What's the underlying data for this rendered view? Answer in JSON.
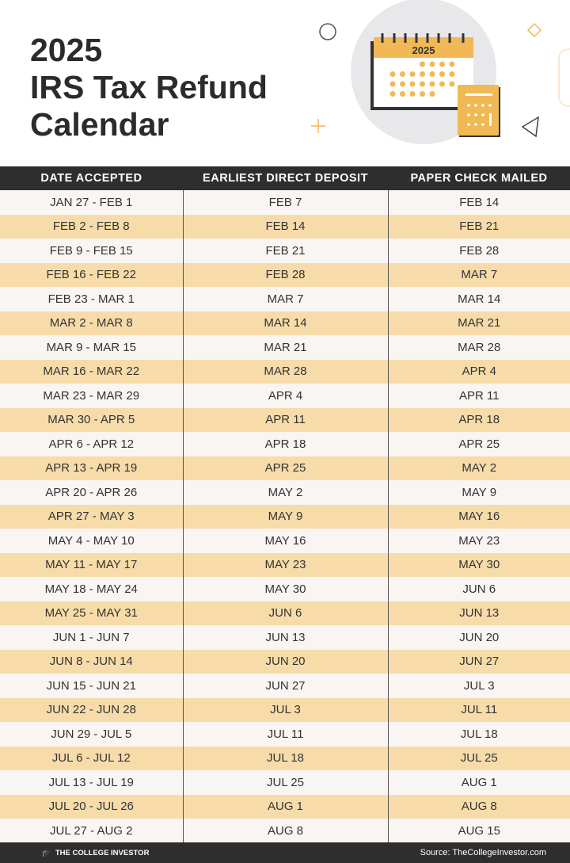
{
  "title": "2025\nIRS Tax Refund\nCalendar",
  "illustration": {
    "calendar_year": "2025",
    "accent": "#f0b955"
  },
  "table": {
    "headers": [
      "DATE ACCEPTED",
      "EARLIEST DIRECT DEPOSIT",
      "PAPER CHECK MAILED"
    ],
    "rows": [
      [
        "JAN 27 - FEB 1",
        "FEB 7",
        "FEB 14"
      ],
      [
        "FEB 2 - FEB 8",
        "FEB 14",
        "FEB 21"
      ],
      [
        "FEB 9 - FEB 15",
        "FEB 21",
        "FEB 28"
      ],
      [
        "FEB 16 - FEB 22",
        "FEB 28",
        "MAR 7"
      ],
      [
        "FEB 23 - MAR 1",
        "MAR 7",
        "MAR 14"
      ],
      [
        "MAR 2 - MAR 8",
        "MAR 14",
        "MAR 21"
      ],
      [
        "MAR 9 - MAR 15",
        "MAR 21",
        "MAR 28"
      ],
      [
        "MAR 16 - MAR 22",
        "MAR 28",
        "APR 4"
      ],
      [
        "MAR 23 - MAR 29",
        "APR 4",
        "APR 11"
      ],
      [
        "MAR 30 - APR 5",
        "APR 11",
        "APR 18"
      ],
      [
        "APR 6 - APR 12",
        "APR 18",
        "APR 25"
      ],
      [
        "APR 13 - APR 19",
        "APR 25",
        "MAY 2"
      ],
      [
        "APR 20 - APR 26",
        "MAY 2",
        "MAY 9"
      ],
      [
        "APR 27 - MAY 3",
        "MAY 9",
        "MAY 16"
      ],
      [
        "MAY 4 - MAY 10",
        "MAY 16",
        "MAY 23"
      ],
      [
        "MAY 11 - MAY 17",
        "MAY 23",
        "MAY 30"
      ],
      [
        "MAY 18 - MAY 24",
        "MAY 30",
        "JUN 6"
      ],
      [
        "MAY 25 - MAY 31",
        "JUN 6",
        "JUN 13"
      ],
      [
        "JUN 1 - JUN 7",
        "JUN 13",
        "JUN 20"
      ],
      [
        "JUN 8 - JUN 14",
        "JUN 20",
        "JUN 27"
      ],
      [
        "JUN 15 - JUN 21",
        "JUN 27",
        "JUL 3"
      ],
      [
        "JUN 22 - JUN 28",
        "JUL 3",
        "JUL 11"
      ],
      [
        "JUN 29 - JUL 5",
        "JUL 11",
        "JUL 18"
      ],
      [
        "JUL 6 - JUL 12",
        "JUL 18",
        "JUL 25"
      ],
      [
        "JUL 13 - JUL 19",
        "JUL 25",
        "AUG 1"
      ],
      [
        "JUL 20 - JUL 26",
        "AUG 1",
        "AUG 8"
      ],
      [
        "JUL 27 - AUG 2",
        "AUG 8",
        "AUG 15"
      ]
    ]
  },
  "footer": {
    "brand": "THE COLLEGE INVESTOR",
    "source": "Source: TheCollegeInvestor.com"
  }
}
